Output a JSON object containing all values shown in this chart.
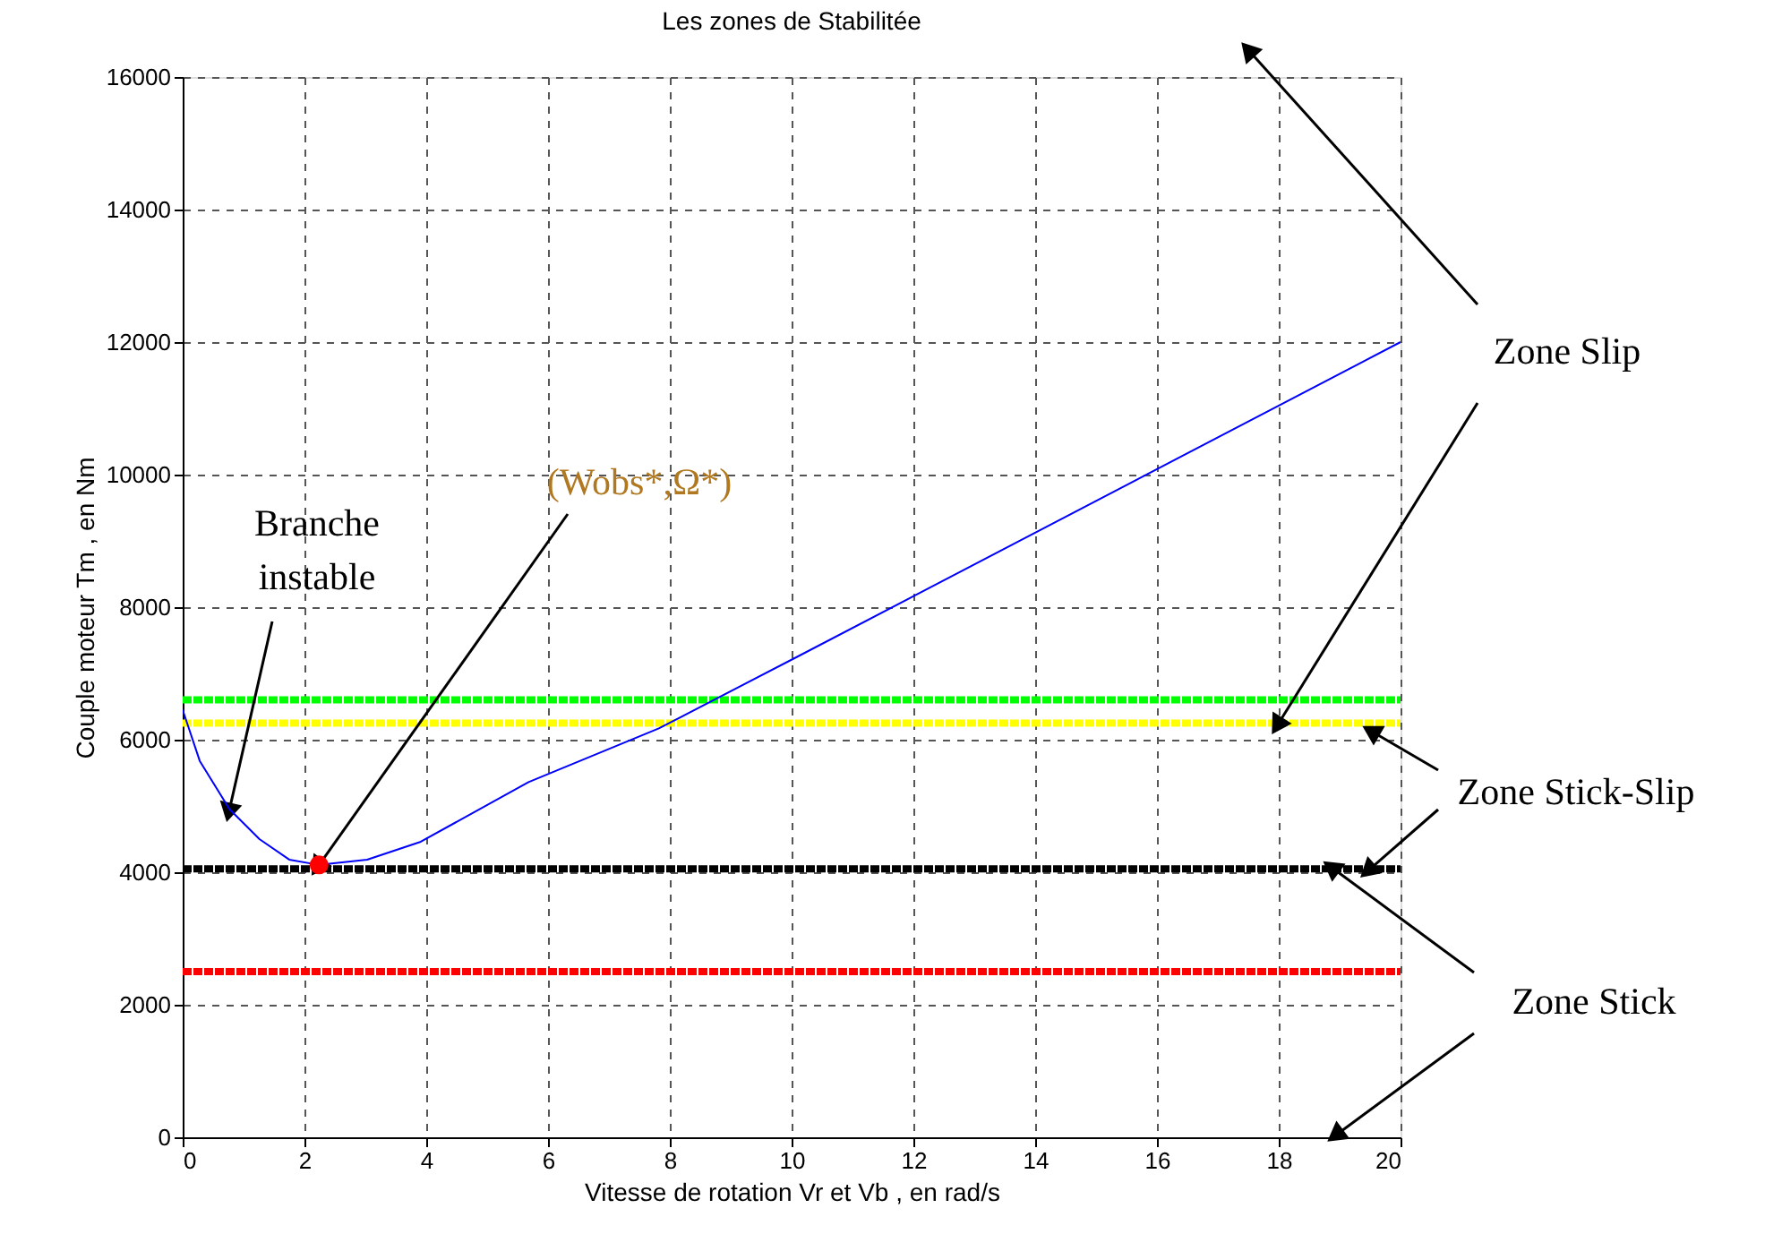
{
  "chart_data": {
    "type": "line",
    "title": "Les zones de Stabilitée",
    "xlabel": "Vitesse de rotation Vr et Vb , en rad/s",
    "ylabel": "Couple moteur Tm , en Nm",
    "series": [
      {
        "color": "#0000ff",
        "x": [
          0,
          0.28,
          0.77,
          1.26,
          1.75,
          2.24,
          3.03,
          3.91,
          5.68,
          7.82,
          10.09,
          20
        ],
        "values": [
          6450,
          5680,
          4950,
          4500,
          4190,
          4110,
          4190,
          4460,
          5360,
          6170,
          7250,
          12000
        ]
      },
      {
        "type": "scatter",
        "color": "#ff0000",
        "x": [
          2.24
        ],
        "values": [
          4110
        ]
      }
    ],
    "ref_lines": [
      {
        "axis": "y",
        "value": 6600,
        "color": "#00ff00",
        "line_style": "dotted"
      },
      {
        "axis": "y",
        "value": 6250,
        "color": "#ffff00",
        "line_style": "dotted"
      },
      {
        "axis": "y",
        "value": 4050,
        "color": "#000000",
        "line_style": "dotted"
      },
      {
        "axis": "y",
        "value": 2500,
        "color": "#ff0000",
        "line_style": "dotted"
      }
    ],
    "annotations": [
      {
        "text": "Zone Slip",
        "x": 18,
        "y": 6250
      },
      {
        "text": "Zone Stick-Slip",
        "x": 19.5,
        "y": 4050
      },
      {
        "text": "Zone Stick",
        "x": 18.9,
        "y": 4050
      },
      {
        "text": "Branche\ninstable",
        "x": 0.77,
        "y": 4950
      },
      {
        "text": "(Wobs*,Ω*)",
        "x": 2.24,
        "y": 4110
      }
    ],
    "xlim": [
      0,
      20
    ],
    "xticks": [
      0,
      2,
      4,
      6,
      8,
      10,
      12,
      14,
      16,
      18,
      20
    ],
    "ylim": [
      0,
      16000
    ],
    "yticks": [
      0,
      2000,
      4000,
      6000,
      8000,
      10000,
      12000,
      14000,
      16000
    ],
    "grid": true
  }
}
